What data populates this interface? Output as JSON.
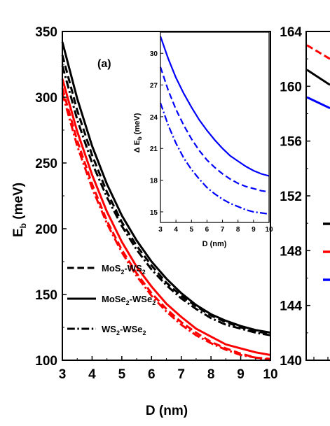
{
  "chart_data": [
    {
      "panel": "main",
      "type": "line",
      "panel_label": "(a)",
      "xlabel": "D (nm)",
      "ylabel_main": "E",
      "ylabel_sub": "b",
      "ylabel_unit": " (meV)",
      "xlim": [
        3,
        10
      ],
      "ylim": [
        100,
        350
      ],
      "xticks": [
        3,
        4,
        5,
        6,
        7,
        8,
        9,
        10
      ],
      "yticks": [
        100,
        150,
        200,
        250,
        300,
        350
      ],
      "x": [
        3,
        3.5,
        4,
        4.5,
        5,
        5.5,
        6,
        6.5,
        7,
        7.5,
        8,
        8.5,
        9,
        9.5,
        10
      ],
      "legend": [
        {
          "style": "dashed",
          "text_parts": [
            "MoS",
            "2",
            "-WS",
            "2"
          ]
        },
        {
          "style": "solid",
          "text_parts": [
            "MoSe",
            "2",
            "-WSe",
            "2"
          ]
        },
        {
          "style": "dashdot",
          "text_parts": [
            "WS",
            "2",
            "-WSe",
            "2"
          ]
        }
      ],
      "series": [
        {
          "color": "#000000",
          "style": "solid",
          "values": [
            342,
            299,
            263,
            234,
            210,
            191,
            175,
            162,
            151,
            142,
            135,
            130,
            126,
            123,
            121
          ]
        },
        {
          "color": "#000000",
          "style": "dashed",
          "values": [
            332,
            290,
            256,
            228,
            205,
            187,
            172,
            159,
            149,
            141,
            134,
            129,
            125,
            122,
            120
          ]
        },
        {
          "color": "#000000",
          "style": "dashdot",
          "values": [
            324,
            283,
            250,
            224,
            202,
            184,
            169,
            157,
            147,
            139,
            132,
            127,
            124,
            121,
            119
          ]
        },
        {
          "color": "#ff0000",
          "style": "solid",
          "values": [
            314,
            274,
            241,
            213,
            190,
            171,
            156,
            143,
            133,
            124,
            118,
            112,
            109,
            106,
            104
          ]
        },
        {
          "color": "#ff0000",
          "style": "dashed",
          "values": [
            307,
            267,
            234,
            206,
            184,
            166,
            151,
            139,
            129,
            121,
            114,
            109,
            105,
            102,
            101
          ]
        },
        {
          "color": "#ff0000",
          "style": "dashdot",
          "values": [
            303,
            263,
            231,
            204,
            182,
            164,
            149,
            137,
            127,
            119,
            113,
            108,
            104,
            102,
            100
          ]
        }
      ]
    },
    {
      "panel": "inset",
      "type": "line",
      "xlabel": "D (nm)",
      "ylabel_prefix": "Δ E",
      "ylabel_sub": "b",
      "ylabel_unit": " (meV)",
      "xlim": [
        3,
        10
      ],
      "ylim": [
        14,
        32
      ],
      "xticks": [
        3,
        4,
        5,
        6,
        7,
        8,
        9,
        10
      ],
      "yticks": [
        15,
        18,
        21,
        24,
        27,
        30
      ],
      "x": [
        3,
        3.5,
        4,
        4.5,
        5,
        5.5,
        6,
        6.5,
        7,
        7.5,
        8,
        8.5,
        9,
        9.5,
        10
      ],
      "series": [
        {
          "color": "#0000ff",
          "style": "solid",
          "values": [
            31.6,
            29.5,
            27.7,
            26.2,
            24.9,
            23.7,
            22.7,
            21.8,
            21.0,
            20.3,
            19.8,
            19.3,
            18.9,
            18.6,
            18.4
          ]
        },
        {
          "color": "#0000ff",
          "style": "dashed",
          "values": [
            28.7,
            26.5,
            24.7,
            23.2,
            21.9,
            20.8,
            19.9,
            19.2,
            18.6,
            18.1,
            17.7,
            17.4,
            17.2,
            17.0,
            16.9
          ]
        },
        {
          "color": "#0000ff",
          "style": "dashdot",
          "values": [
            25.3,
            23.2,
            21.5,
            20.1,
            19.0,
            18.1,
            17.3,
            16.7,
            16.2,
            15.8,
            15.5,
            15.2,
            15.0,
            14.9,
            14.8
          ]
        }
      ]
    },
    {
      "panel": "right-partial",
      "type": "line",
      "ylim": [
        140,
        164
      ],
      "yticks": [
        140,
        144,
        148,
        152,
        156,
        160,
        164
      ],
      "legend_colors": [
        "#000000",
        "#ff0000",
        "#0000ff"
      ],
      "series": [
        {
          "color": "#ff0000",
          "style": "dashed",
          "values": [
            163.0,
            162.0
          ]
        },
        {
          "color": "#000000",
          "style": "solid",
          "values": [
            161.2,
            160.1
          ]
        },
        {
          "color": "#0000ff",
          "style": "solid",
          "values": [
            159.2,
            158.4
          ]
        }
      ]
    }
  ]
}
